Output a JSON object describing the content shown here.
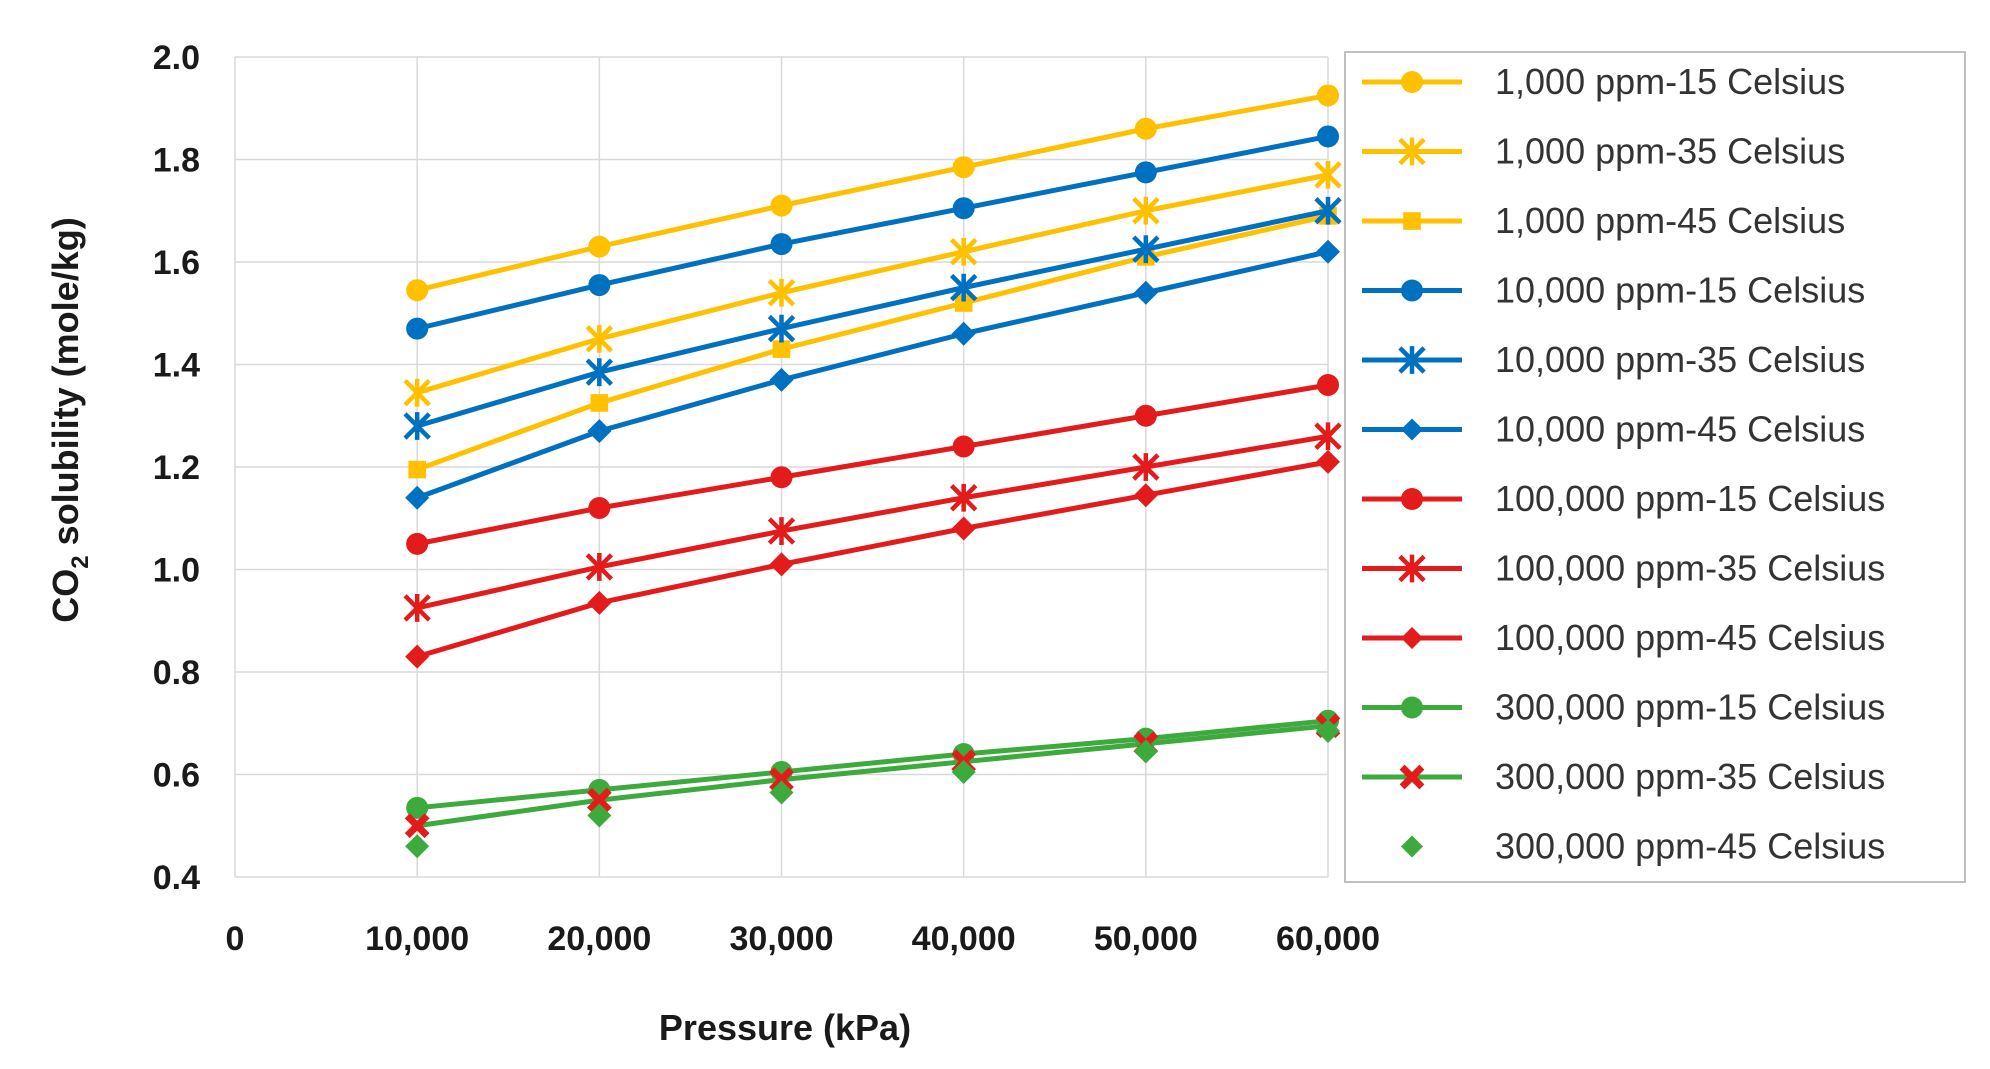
{
  "chart_data": {
    "type": "line",
    "title": "",
    "xlabel": "Pressure (kPa)",
    "ylabel_main": "CO",
    "ylabel_sub": "2",
    "ylabel_rest": " solubility (mole/kg)",
    "x_ticks": [
      "0",
      "10,000",
      "20,000",
      "30,000",
      "40,000",
      "50,000",
      "60,000"
    ],
    "y_ticks": [
      "0.4",
      "0.6",
      "0.8",
      "1.0",
      "1.2",
      "1.4",
      "1.6",
      "1.8",
      "2.0"
    ],
    "xlim": [
      0,
      60000
    ],
    "ylim": [
      0.4,
      2.0
    ],
    "grid": true,
    "legend_position": "right",
    "x": [
      10000,
      20000,
      30000,
      40000,
      50000,
      60000
    ],
    "series": [
      {
        "name": "1,000 ppm-15 Celsius",
        "color": "#FFC000",
        "marker": "circle",
        "line": true,
        "values": [
          1.545,
          1.63,
          1.71,
          1.785,
          1.86,
          1.925
        ]
      },
      {
        "name": "1,000 ppm-35 Celsius",
        "color": "#FFC000",
        "marker": "asterisk",
        "line": true,
        "values": [
          1.345,
          1.45,
          1.54,
          1.62,
          1.7,
          1.77
        ]
      },
      {
        "name": "1,000 ppm-45 Celsius",
        "color": "#FFC000",
        "marker": "square",
        "line": true,
        "values": [
          1.195,
          1.325,
          1.43,
          1.52,
          1.61,
          1.69
        ]
      },
      {
        "name": "10,000 ppm-15 Celsius",
        "color": "#0070C0",
        "marker": "circle",
        "line": true,
        "values": [
          1.47,
          1.555,
          1.635,
          1.705,
          1.775,
          1.845
        ]
      },
      {
        "name": "10,000 ppm-35 Celsius",
        "color": "#0070C0",
        "marker": "asterisk",
        "line": true,
        "values": [
          1.28,
          1.385,
          1.47,
          1.55,
          1.625,
          1.7
        ]
      },
      {
        "name": "10,000 ppm-45 Celsius",
        "color": "#0070C0",
        "marker": "diamond",
        "line": true,
        "values": [
          1.14,
          1.27,
          1.37,
          1.46,
          1.54,
          1.62
        ]
      },
      {
        "name": "100,000 ppm-15 Celsius",
        "color": "#E31B1B",
        "marker": "circle",
        "line": true,
        "values": [
          1.05,
          1.12,
          1.18,
          1.24,
          1.3,
          1.36
        ]
      },
      {
        "name": "100,000 ppm-35 Celsius",
        "color": "#E31B1B",
        "marker": "asterisk",
        "line": true,
        "values": [
          0.925,
          1.005,
          1.075,
          1.14,
          1.2,
          1.26
        ]
      },
      {
        "name": "100,000 ppm-45 Celsius",
        "color": "#E31B1B",
        "marker": "diamond",
        "line": true,
        "values": [
          0.83,
          0.935,
          1.01,
          1.08,
          1.145,
          1.21
        ]
      },
      {
        "name": "300,000 ppm-15 Celsius",
        "color": "#3CAA3C",
        "marker": "circle",
        "line": true,
        "values": [
          0.535,
          0.57,
          0.605,
          0.64,
          0.67,
          0.705
        ]
      },
      {
        "name": "300,000 ppm-35 Celsius",
        "color": "#3CAA3C",
        "marker": "x",
        "markerColor": "#E31B1B",
        "line": true,
        "values": [
          0.5,
          0.55,
          0.59,
          0.625,
          0.66,
          0.695
        ]
      },
      {
        "name": "300,000 ppm-45 Celsius",
        "color": "#3CAA3C",
        "marker": "diamond",
        "line": false,
        "values": [
          0.46,
          0.52,
          0.565,
          0.605,
          0.645,
          0.685
        ]
      }
    ]
  }
}
